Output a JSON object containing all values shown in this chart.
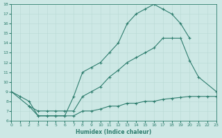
{
  "xlabel": "Humidex (Indice chaleur)",
  "xlim": [
    0,
    23
  ],
  "ylim": [
    6,
    18
  ],
  "xticks": [
    0,
    1,
    2,
    3,
    4,
    5,
    6,
    7,
    8,
    9,
    10,
    11,
    12,
    13,
    14,
    15,
    16,
    17,
    18,
    19,
    20,
    21,
    22,
    23
  ],
  "yticks": [
    6,
    7,
    8,
    9,
    10,
    11,
    12,
    13,
    14,
    15,
    16,
    17,
    18
  ],
  "bg_color": "#cde8e5",
  "line_color": "#2e7d6e",
  "line1_x": [
    0,
    1,
    2,
    3,
    4,
    5,
    6,
    7,
    8,
    9,
    10,
    11,
    12,
    13,
    14,
    15,
    16,
    17,
    18,
    19,
    20
  ],
  "line1_y": [
    9.0,
    8.5,
    8.0,
    6.5,
    6.5,
    6.5,
    6.5,
    8.5,
    11.0,
    11.5,
    12.0,
    13.0,
    14.0,
    16.0,
    17.0,
    17.5,
    18.0,
    17.5,
    17.0,
    16.0,
    14.5
  ],
  "line2_x": [
    0,
    2,
    3,
    4,
    5,
    6,
    7,
    8,
    9,
    10,
    11,
    12,
    13,
    14,
    15,
    16,
    17,
    18,
    19,
    20,
    21,
    23
  ],
  "line2_y": [
    9.0,
    7.5,
    7.0,
    7.0,
    7.0,
    7.0,
    7.0,
    8.5,
    9.0,
    9.5,
    10.5,
    11.2,
    12.0,
    12.5,
    13.0,
    13.5,
    14.5,
    14.5,
    14.5,
    12.2,
    10.5,
    9.0
  ],
  "line3_x": [
    2,
    3,
    4,
    5,
    6,
    7,
    8,
    9,
    10,
    11,
    12,
    13,
    14,
    15,
    16,
    17,
    18,
    19,
    20,
    21,
    22,
    23
  ],
  "line3_y": [
    7.5,
    6.5,
    6.5,
    6.5,
    6.5,
    6.5,
    7.0,
    7.0,
    7.2,
    7.5,
    7.5,
    7.8,
    7.8,
    8.0,
    8.0,
    8.2,
    8.3,
    8.4,
    8.5,
    8.5,
    8.5,
    8.5
  ]
}
